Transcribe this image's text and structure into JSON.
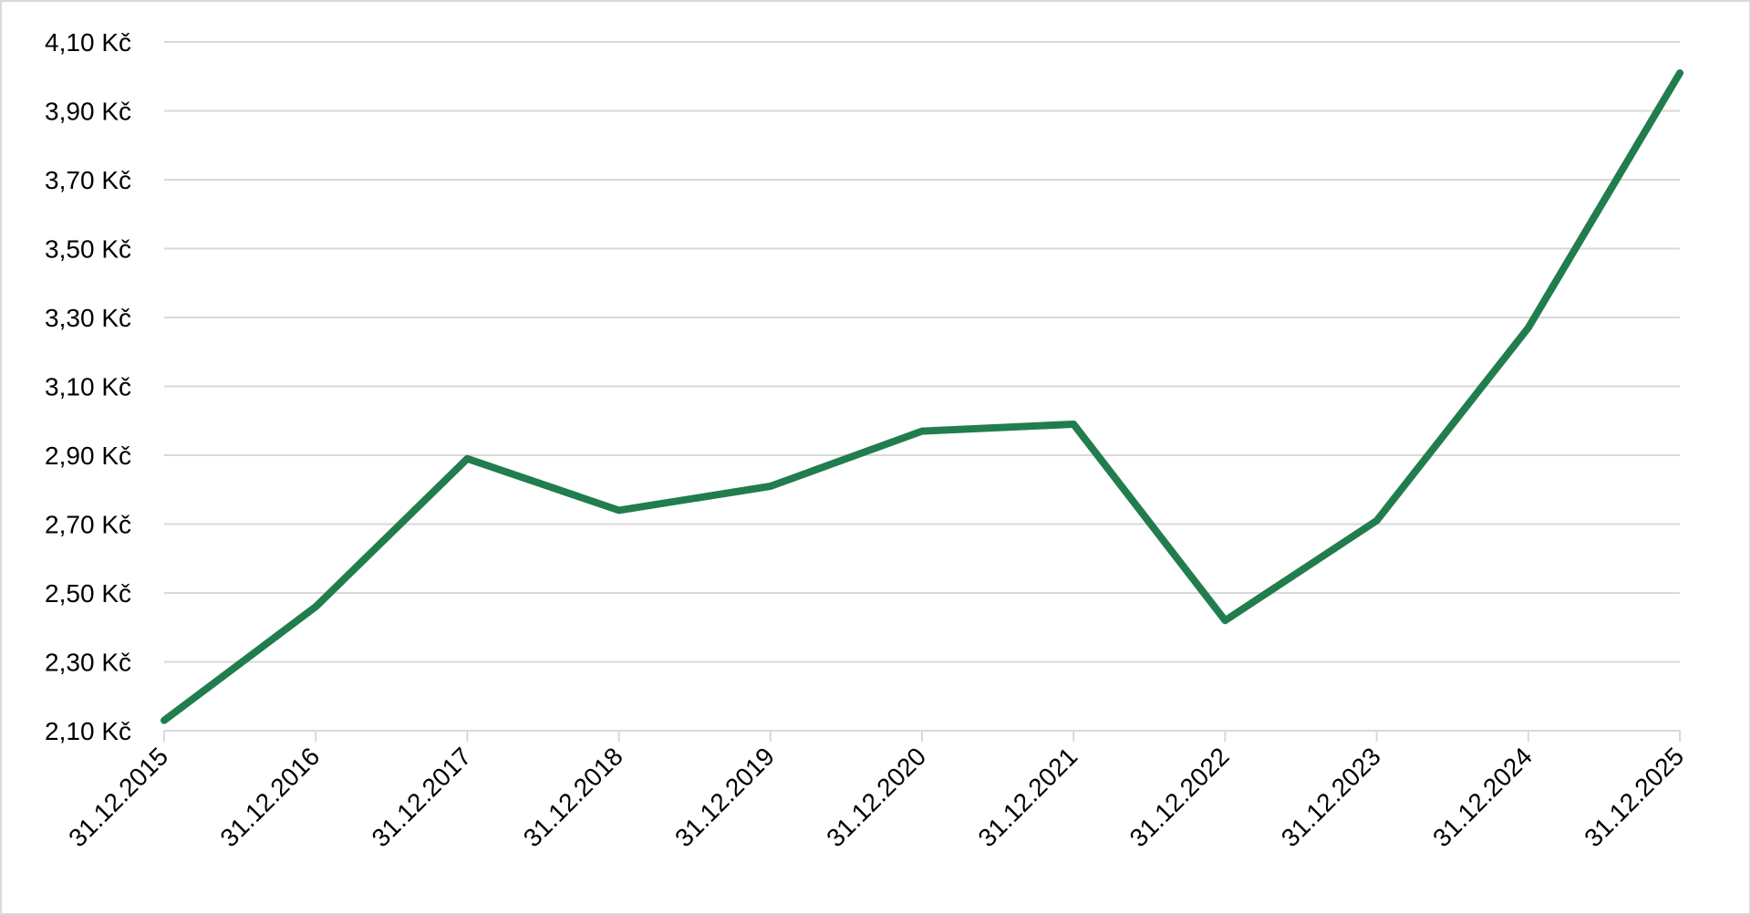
{
  "chart_data": {
    "type": "line",
    "title": "",
    "xlabel": "",
    "ylabel": "",
    "categories": [
      "31.12.2015",
      "31.12.2016",
      "31.12.2017",
      "31.12.2018",
      "31.12.2019",
      "31.12.2020",
      "31.12.2021",
      "31.12.2022",
      "31.12.2023",
      "31.12.2024",
      "31.12.2025"
    ],
    "series": [
      {
        "values": [
          2.13,
          2.46,
          2.89,
          2.74,
          2.81,
          2.97,
          2.99,
          2.42,
          2.71,
          3.27,
          4.01
        ],
        "color": "#217d4d"
      }
    ],
    "ylim": [
      2.1,
      4.1
    ],
    "y_ticks": [
      2.1,
      2.3,
      2.5,
      2.7,
      2.9,
      3.1,
      3.3,
      3.5,
      3.7,
      3.9,
      4.1
    ],
    "y_tick_labels": [
      "2,10 Kč",
      "2,30 Kč",
      "2,50 Kč",
      "2,70 Kč",
      "2,90 Kč",
      "3,10 Kč",
      "3,30 Kč",
      "3,50 Kč",
      "3,70 Kč",
      "3,90 Kč",
      "4,10 Kč"
    ],
    "grid": true,
    "legend": "none",
    "colors": {
      "grid": "#d9d9d9",
      "axis": "#d9d9d9",
      "text": "#000000"
    }
  }
}
